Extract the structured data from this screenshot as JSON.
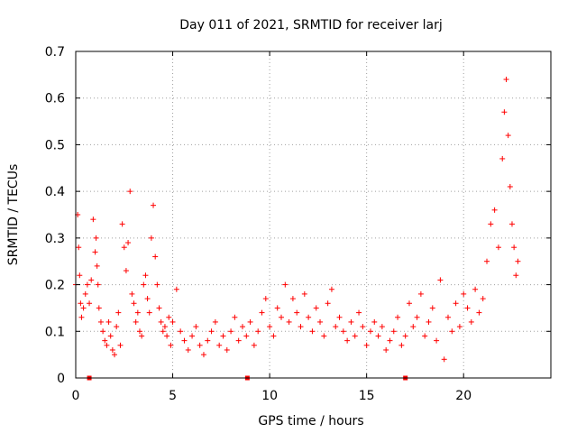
{
  "chart_data": {
    "type": "scatter",
    "title": "Day 011 of 2021, SRMTID for receiver larj",
    "xlabel": "GPS time / hours",
    "ylabel": "SRMTID / TECUs",
    "xlim": [
      0,
      24.5
    ],
    "ylim": [
      0,
      0.7
    ],
    "xticks": [
      0,
      5,
      10,
      15,
      20
    ],
    "xtick_labels": [
      "0",
      "5",
      "10",
      "15",
      "20"
    ],
    "yticks": [
      0,
      0.1,
      0.2,
      0.3,
      0.4,
      0.5,
      0.6,
      0.7
    ],
    "ytick_labels": [
      "0",
      "0.1",
      "0.2",
      "0.3",
      "0.4",
      "0.5",
      "0.6",
      "0.7"
    ],
    "grid": true,
    "marker": "+",
    "color": "#ff0000",
    "legend": "none",
    "baseline_markers": {
      "x": [
        0.7,
        8.85,
        17.0
      ],
      "y": 0
    },
    "series": [
      {
        "name": "SRMTID",
        "x": [
          0.0,
          0.1,
          0.15,
          0.2,
          0.25,
          0.3,
          0.4,
          0.5,
          0.6,
          0.7,
          0.8,
          0.9,
          1.0,
          1.05,
          1.1,
          1.15,
          1.2,
          1.3,
          1.4,
          1.5,
          1.6,
          1.7,
          1.8,
          1.9,
          2.0,
          2.1,
          2.2,
          2.3,
          2.4,
          2.5,
          2.6,
          2.7,
          2.8,
          2.9,
          3.0,
          3.1,
          3.2,
          3.3,
          3.4,
          3.5,
          3.6,
          3.7,
          3.8,
          3.9,
          4.0,
          4.1,
          4.2,
          4.3,
          4.4,
          4.5,
          4.6,
          4.7,
          4.8,
          4.9,
          5.0,
          5.2,
          5.4,
          5.6,
          5.8,
          6.0,
          6.2,
          6.4,
          6.6,
          6.8,
          7.0,
          7.2,
          7.4,
          7.6,
          7.8,
          8.0,
          8.2,
          8.4,
          8.6,
          8.8,
          9.0,
          9.2,
          9.4,
          9.6,
          9.8,
          10.0,
          10.2,
          10.4,
          10.6,
          10.8,
          11.0,
          11.2,
          11.4,
          11.6,
          11.8,
          12.0,
          12.2,
          12.4,
          12.6,
          12.8,
          13.0,
          13.2,
          13.4,
          13.6,
          13.8,
          14.0,
          14.2,
          14.4,
          14.6,
          14.8,
          15.0,
          15.2,
          15.4,
          15.6,
          15.8,
          16.0,
          16.2,
          16.4,
          16.6,
          16.8,
          17.0,
          17.2,
          17.4,
          17.6,
          17.8,
          18.0,
          18.2,
          18.4,
          18.6,
          18.8,
          19.0,
          19.2,
          19.4,
          19.6,
          19.8,
          20.0,
          20.2,
          20.4,
          20.6,
          20.8,
          21.0,
          21.2,
          21.4,
          21.6,
          21.8,
          22.0,
          22.1,
          22.2,
          22.3,
          22.4,
          22.5,
          22.6,
          22.7,
          22.8
        ],
        "y": [
          0.2,
          0.35,
          0.28,
          0.22,
          0.16,
          0.13,
          0.15,
          0.18,
          0.2,
          0.16,
          0.21,
          0.34,
          0.27,
          0.3,
          0.24,
          0.2,
          0.15,
          0.12,
          0.1,
          0.08,
          0.07,
          0.12,
          0.09,
          0.06,
          0.05,
          0.11,
          0.14,
          0.07,
          0.33,
          0.28,
          0.23,
          0.29,
          0.4,
          0.18,
          0.16,
          0.12,
          0.14,
          0.1,
          0.09,
          0.2,
          0.22,
          0.17,
          0.14,
          0.3,
          0.37,
          0.26,
          0.2,
          0.15,
          0.12,
          0.1,
          0.11,
          0.09,
          0.13,
          0.07,
          0.12,
          0.19,
          0.1,
          0.08,
          0.06,
          0.09,
          0.11,
          0.07,
          0.05,
          0.08,
          0.1,
          0.12,
          0.07,
          0.09,
          0.06,
          0.1,
          0.13,
          0.08,
          0.11,
          0.09,
          0.12,
          0.07,
          0.1,
          0.14,
          0.17,
          0.11,
          0.09,
          0.15,
          0.13,
          0.2,
          0.12,
          0.17,
          0.14,
          0.11,
          0.18,
          0.13,
          0.1,
          0.15,
          0.12,
          0.09,
          0.16,
          0.19,
          0.11,
          0.13,
          0.1,
          0.08,
          0.12,
          0.09,
          0.14,
          0.11,
          0.07,
          0.1,
          0.12,
          0.09,
          0.11,
          0.06,
          0.08,
          0.1,
          0.13,
          0.07,
          0.09,
          0.16,
          0.11,
          0.13,
          0.18,
          0.09,
          0.12,
          0.15,
          0.08,
          0.21,
          0.04,
          0.13,
          0.1,
          0.16,
          0.11,
          0.18,
          0.15,
          0.12,
          0.19,
          0.14,
          0.17,
          0.25,
          0.33,
          0.36,
          0.28,
          0.47,
          0.57,
          0.64,
          0.52,
          0.41,
          0.33,
          0.28,
          0.22,
          0.25
        ]
      }
    ]
  }
}
